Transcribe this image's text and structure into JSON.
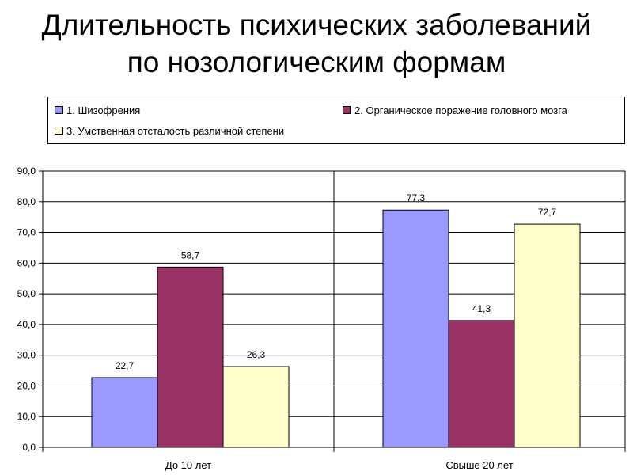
{
  "title": {
    "line1": "Длительность психических заболеваний",
    "line2": "по нозологическим формам"
  },
  "colors": {
    "series1": "#9999ff",
    "series2": "#993366",
    "series3": "#ffffcc"
  },
  "legend": {
    "placement": "top",
    "items": [
      "1. Шизофрения",
      "2. Органическое поражение головного мозга",
      "3. Умственная отсталость различной степени"
    ]
  },
  "chart_data": {
    "type": "bar",
    "title": "",
    "xlabel": "",
    "ylabel": "",
    "categories": [
      "До 10 лет",
      "Свыше 20 лет"
    ],
    "series": [
      {
        "name": "1. Шизофрения",
        "values": [
          22.7,
          77.3
        ],
        "labels": [
          "22,7",
          "77,3"
        ]
      },
      {
        "name": "2. Органическое поражение головного мозга",
        "values": [
          58.7,
          41.3
        ],
        "labels": [
          "58,7",
          "41,3"
        ]
      },
      {
        "name": "3. Умственная отсталость различной степени",
        "values": [
          26.3,
          72.7
        ],
        "labels": [
          "26,3",
          "72,7"
        ]
      }
    ],
    "ylim": [
      0,
      90
    ],
    "yticks": [
      0,
      10,
      20,
      30,
      40,
      50,
      60,
      70,
      80,
      90
    ],
    "ytick_labels": [
      "0,0",
      "10,0",
      "20,0",
      "30,0",
      "40,0",
      "50,0",
      "60,0",
      "70,0",
      "80,0",
      "90,0"
    ],
    "grid": true
  }
}
